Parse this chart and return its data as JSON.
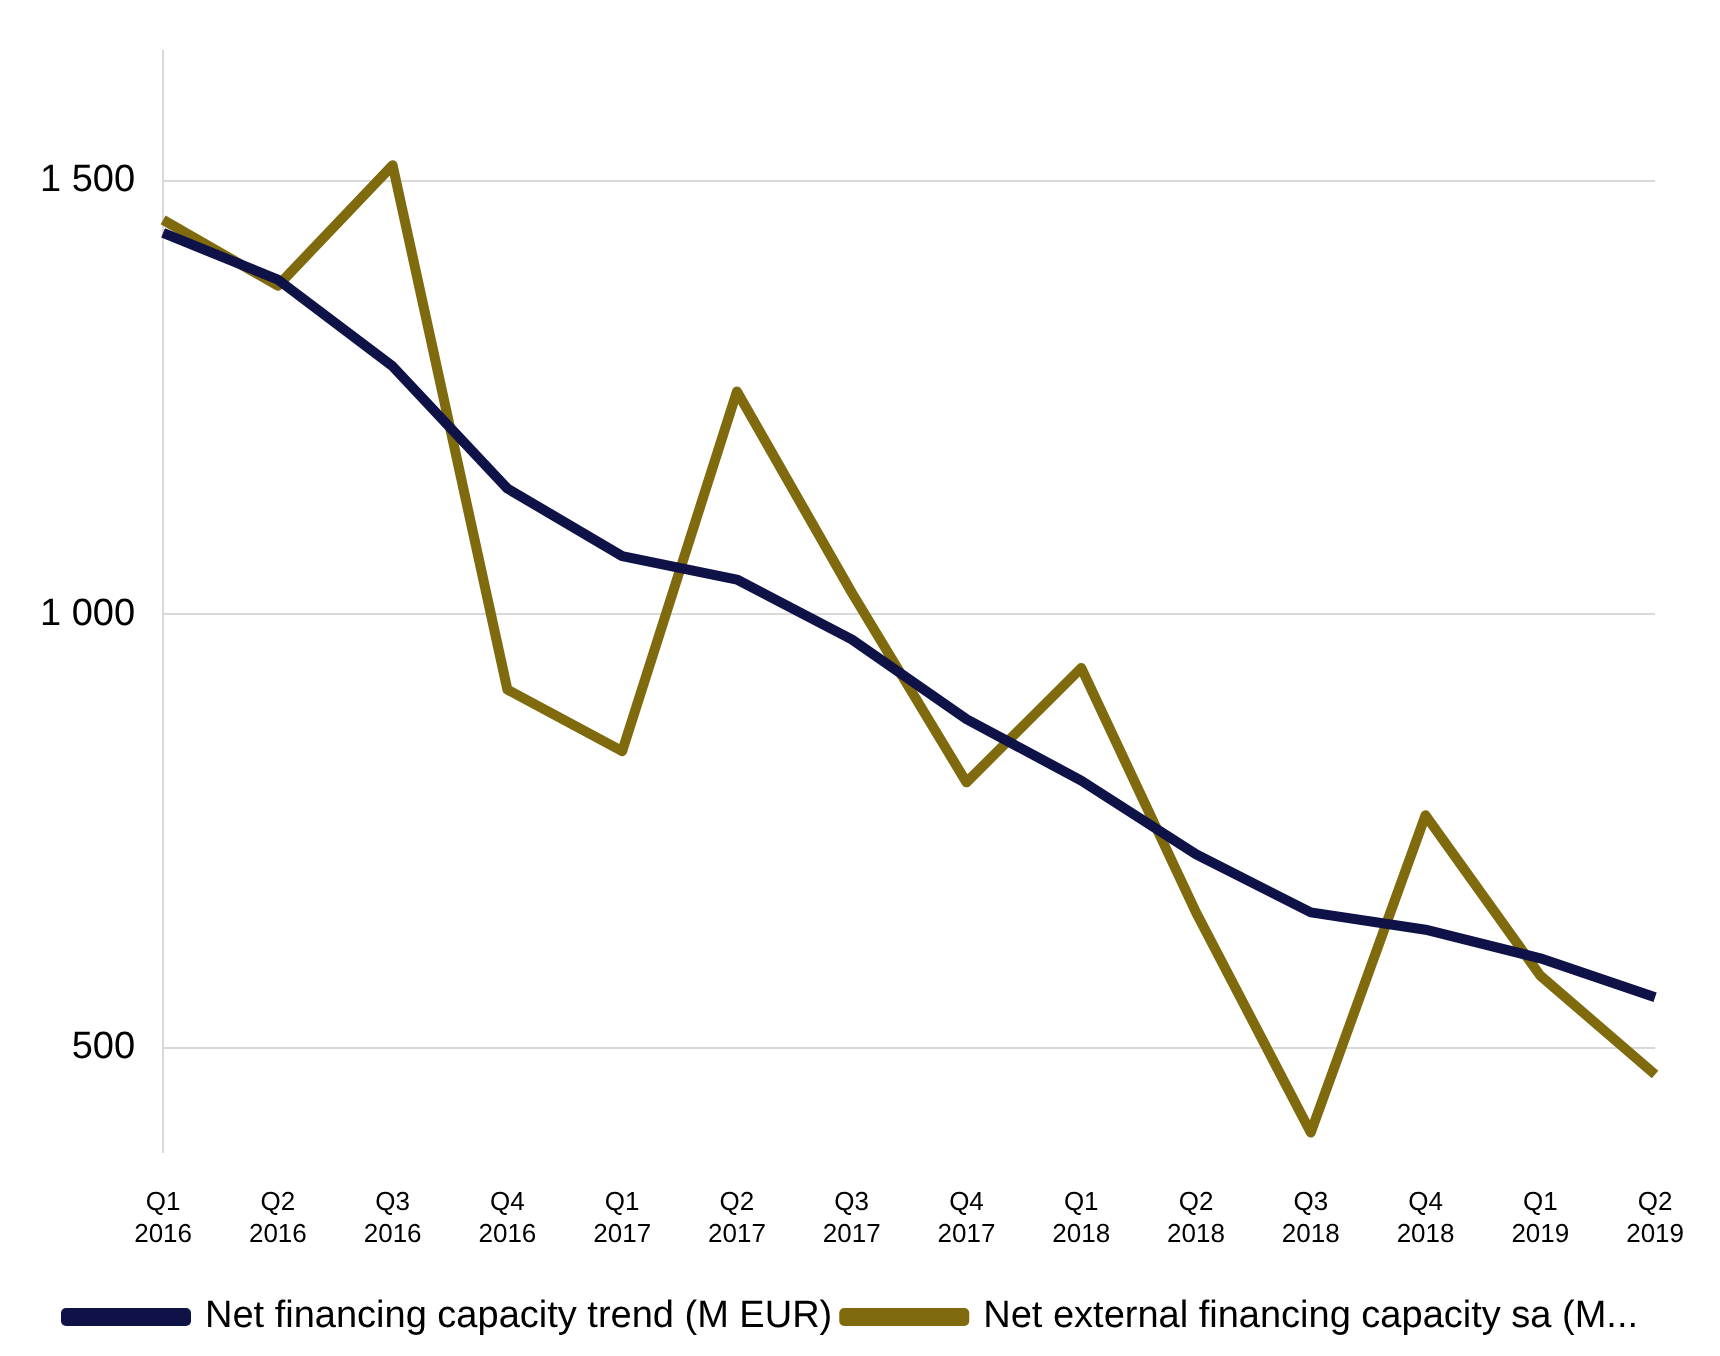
{
  "chart_data": {
    "type": "line",
    "categories": [
      "Q1 2016",
      "Q2 2016",
      "Q3 2016",
      "Q4 2016",
      "Q1 2017",
      "Q2 2017",
      "Q3 2017",
      "Q4 2017",
      "Q1 2018",
      "Q2 2018",
      "Q3 2018",
      "Q4 2018",
      "Q1 2019",
      "Q2 2019"
    ],
    "series": [
      {
        "name": "Net financing capacity trend (M EUR)",
        "color": "#0f1247",
        "values": [
          1440,
          1386,
          1286,
          1145,
          1067,
          1040,
          971,
          879,
          808,
          723,
          656,
          636,
          603,
          558
        ]
      },
      {
        "name": "Net external financing capacity sa (M...",
        "color": "#7f6a0d",
        "values": [
          1455,
          1379,
          1518,
          913,
          842,
          1257,
          1025,
          806,
          938,
          656,
          402,
          768,
          583,
          469
        ]
      }
    ],
    "ylim": [
      380,
      1650
    ],
    "yticks": [
      {
        "value": 500,
        "label": "500"
      },
      {
        "value": 1000,
        "label": "1 000"
      },
      {
        "value": 1500,
        "label": "1 500"
      }
    ],
    "grid": "y",
    "legend": "bottom",
    "marker": "none",
    "line_style": "solid"
  }
}
